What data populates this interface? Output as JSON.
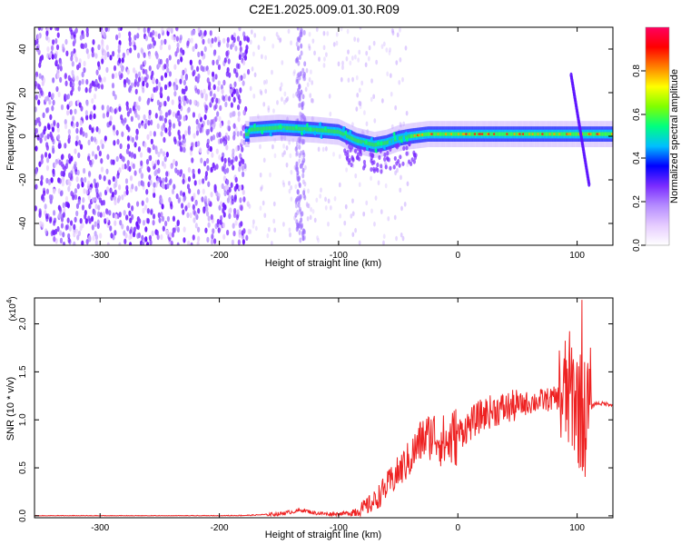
{
  "figure": {
    "title": "C2E1.2025.009.01.30.R09"
  },
  "chart_data": [
    {
      "type": "heatmap",
      "title": "C2E1.2025.009.01.30.R09",
      "xlabel": "Height of straight line (km)",
      "ylabel": "Frequency (Hz)",
      "xlim": [
        -355,
        130
      ],
      "ylim": [
        -50,
        50
      ],
      "xticks": [
        -300,
        -200,
        -100,
        0,
        100
      ],
      "xtick_labels": [
        "-300",
        "-200",
        "-100",
        "0",
        "100"
      ],
      "yticks": [
        -40,
        -20,
        0,
        20,
        40
      ],
      "ytick_labels": [
        "-40",
        "-20",
        "0",
        "20",
        "40"
      ],
      "colorbar": {
        "label": "Normalized spectral amplitude",
        "range": [
          0,
          1
        ],
        "ticks": [
          0.0,
          0.2,
          0.4,
          0.6,
          0.8
        ],
        "tick_labels": [
          "0.0",
          "0.2",
          "0.4",
          "0.6",
          "0.8"
        ],
        "colors": [
          "#ffffff",
          "#e6ccff",
          "#b58cff",
          "#7a2cff",
          "#0000ff",
          "#00bfff",
          "#00ff80",
          "#80ff00",
          "#ffff00",
          "#ff8000",
          "#ff0000",
          "#ff0060"
        ]
      },
      "features": {
        "noise_region_km": [
          -355,
          -175
        ],
        "carrier_trace": [
          [
            -175,
            3
          ],
          [
            -150,
            4
          ],
          [
            -120,
            3
          ],
          [
            -100,
            2
          ],
          [
            -85,
            -2
          ],
          [
            -70,
            -4
          ],
          [
            -60,
            -3
          ],
          [
            -50,
            -1
          ],
          [
            -40,
            0
          ],
          [
            -25,
            1
          ],
          [
            0,
            1
          ],
          [
            50,
            1
          ],
          [
            100,
            1
          ],
          [
            130,
            1
          ]
        ],
        "doppler_streak": {
          "x": [
            95,
            110
          ],
          "y": [
            28,
            -22
          ]
        }
      }
    },
    {
      "type": "line",
      "xlabel": "Height of straight line (km)",
      "ylabel": "SNR (10 * v/v)",
      "y_multiplier_label": "(x10",
      "y_multiplier_exp": "4",
      "y_multiplier_close": ")",
      "xlim": [
        -355,
        130
      ],
      "ylim": [
        -0.02,
        2.27
      ],
      "xticks": [
        -300,
        -200,
        -100,
        0,
        100
      ],
      "xtick_labels": [
        "-300",
        "-200",
        "-100",
        "0",
        "100"
      ],
      "yticks": [
        0.0,
        0.5,
        1.0,
        1.5,
        2.0
      ],
      "ytick_labels": [
        "0.0",
        "0.5",
        "1.0",
        "1.5",
        "2.0"
      ],
      "series": [
        {
          "name": "SNR",
          "color": "#ee2222",
          "x": [
            -355,
            -300,
            -250,
            -200,
            -175,
            -150,
            -130,
            -120,
            -110,
            -100,
            -90,
            -80,
            -70,
            -60,
            -50,
            -40,
            -30,
            -20,
            -10,
            0,
            10,
            20,
            30,
            40,
            50,
            60,
            70,
            80,
            90,
            95,
            100,
            105,
            110,
            115,
            120,
            130
          ],
          "y": [
            0.0,
            0.0,
            0.0,
            0.0,
            0.005,
            0.02,
            0.06,
            0.03,
            0.02,
            0.02,
            0.03,
            0.07,
            0.15,
            0.3,
            0.45,
            0.6,
            0.8,
            0.85,
            0.75,
            0.85,
            0.95,
            1.05,
            1.1,
            1.12,
            1.15,
            1.18,
            1.2,
            1.22,
            1.25,
            1.3,
            1.2,
            1.0,
            1.1,
            1.17,
            1.17,
            1.16
          ]
        }
      ],
      "annotations": {
        "peak": {
          "x": 104,
          "y": 2.25
        }
      }
    }
  ]
}
